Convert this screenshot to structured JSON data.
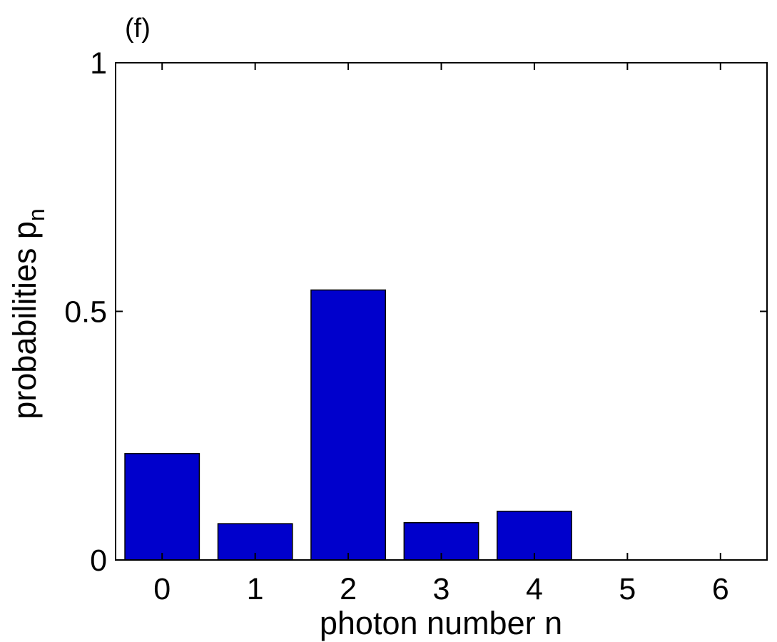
{
  "panel_label": "(f)",
  "colors": {
    "bar": "#0000cc",
    "axis": "#000000"
  },
  "chart_data": {
    "type": "bar",
    "categories": [
      "0",
      "1",
      "2",
      "3",
      "4",
      "5",
      "6"
    ],
    "values": [
      0.214,
      0.073,
      0.543,
      0.075,
      0.098,
      0,
      0
    ],
    "xlabel": "photon number n",
    "ylabel_main": "probabilities p",
    "ylabel_subscript": "n",
    "ylim": [
      0,
      1
    ],
    "yticks": [
      0,
      0.5,
      1
    ],
    "ytick_labels": [
      "0",
      "0.5",
      "1"
    ],
    "grid": false,
    "legend": "none"
  }
}
